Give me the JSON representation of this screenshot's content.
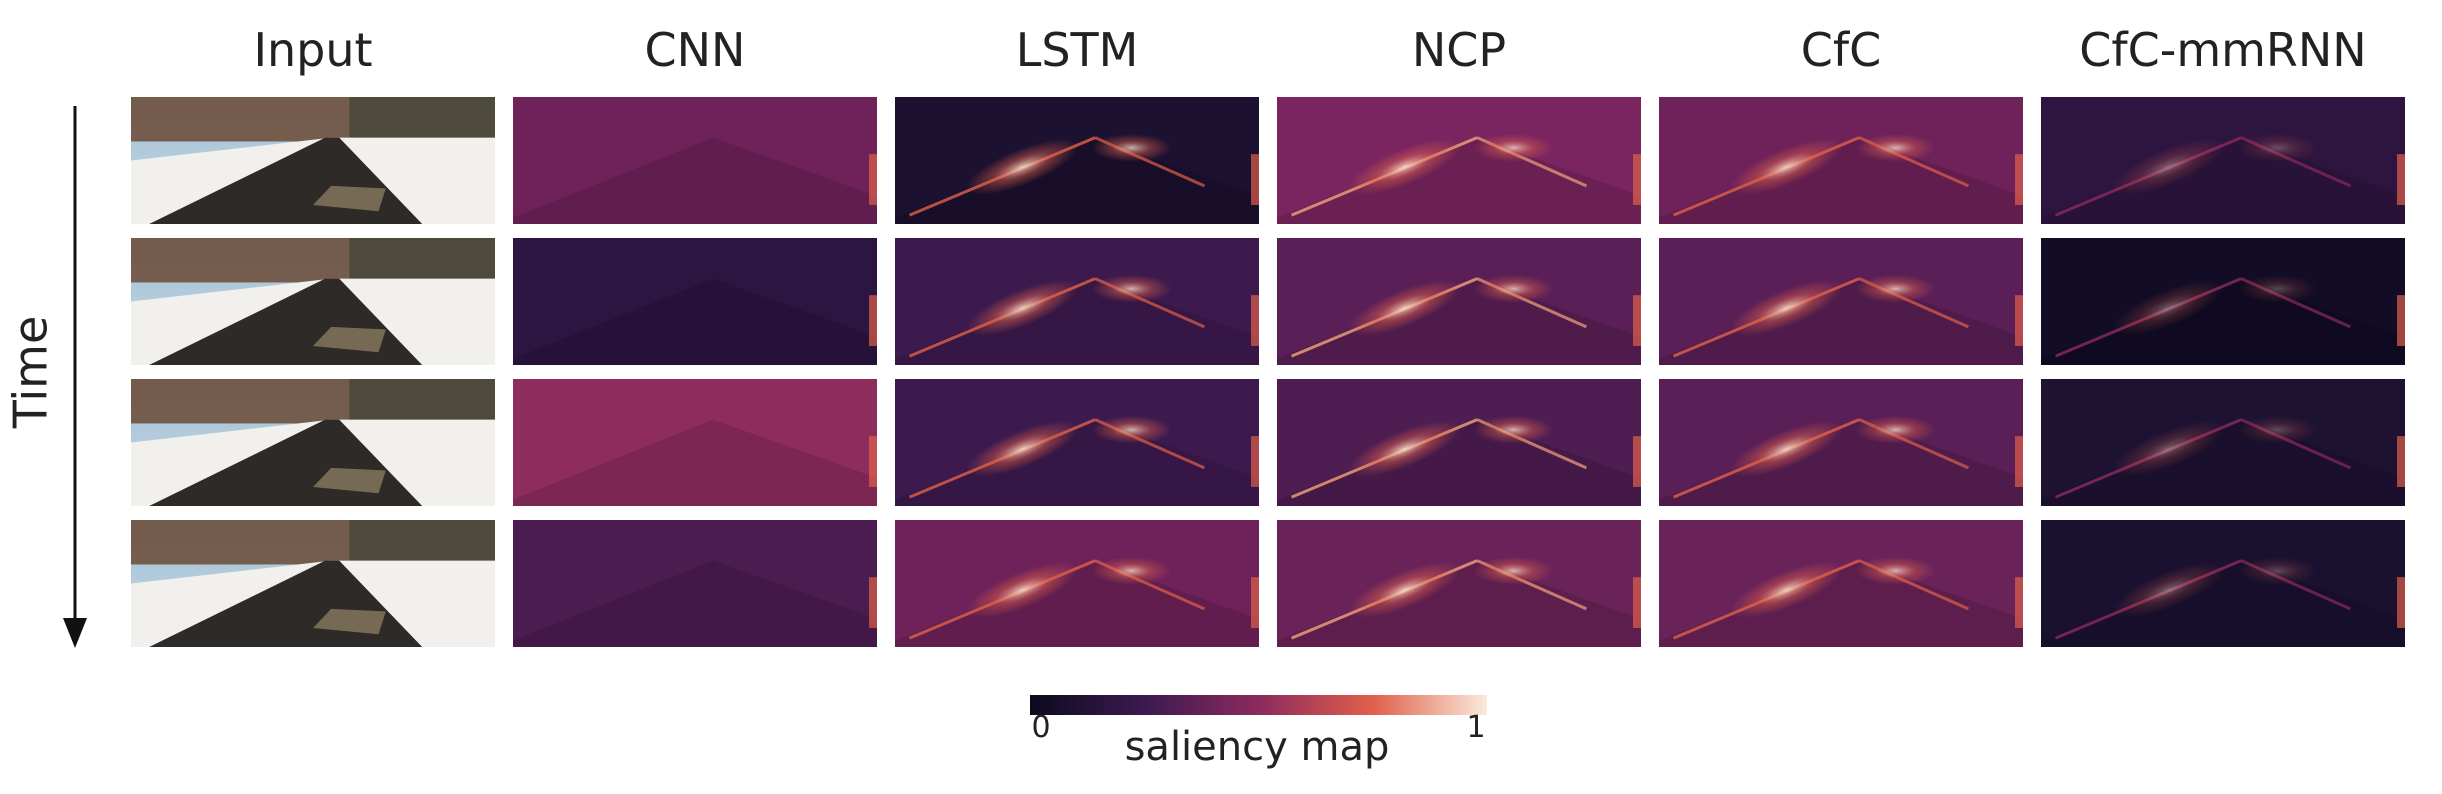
{
  "columns": [
    "Input",
    "CNN",
    "LSTM",
    "NCP",
    "CfC",
    "CfC-mmRNN"
  ],
  "row_label": "Time",
  "colorbar": {
    "label": "saliency map",
    "min": "0",
    "max": "1"
  }
}
